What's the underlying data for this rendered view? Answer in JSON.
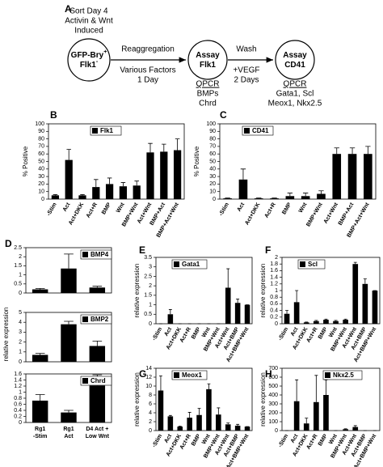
{
  "diagram": {
    "panel": "A",
    "start": [
      "Sort Day 4",
      "Activin & Wnt",
      "Induced"
    ],
    "nodes": [
      {
        "lines": [
          {
            "text": "GFP-Bry",
            "sup": "+"
          },
          {
            "text": "Flk1",
            "sup": "-"
          }
        ]
      },
      {
        "lines": [
          {
            "text": "Assay"
          },
          {
            "text": "Flk1"
          }
        ],
        "readout": [
          "QPCR",
          "BMPs",
          "Chrd"
        ]
      },
      {
        "lines": [
          {
            "text": "Assay"
          },
          {
            "text": "CD41"
          }
        ],
        "readout": [
          "QPCR",
          "Gata1, Scl",
          "Meox1, Nkx2.5"
        ]
      }
    ],
    "steps": [
      {
        "above": "Reaggregation",
        "below": [
          "Various Factors",
          "1 Day"
        ]
      },
      {
        "above": "Wash",
        "below": [
          "+VEGF",
          "2 Days"
        ]
      }
    ]
  },
  "chart_data": [
    {
      "type": "bar",
      "panel": "B",
      "ylabel": "% Positive",
      "categories": [
        "-Stim",
        "Act",
        "Act+DKK",
        "Act+R",
        "BMP",
        "Wnt",
        "BMP+Wnt",
        "Act+Wnt",
        "BMP+Act",
        "BMP+Act+Wnt"
      ],
      "series": [
        {
          "name": "Flk1",
          "color": "#000000",
          "values": [
            5,
            52,
            5,
            16,
            20,
            17,
            18,
            62,
            63,
            65
          ],
          "errors": [
            1,
            14,
            1,
            10,
            8,
            5,
            6,
            12,
            10,
            15
          ]
        }
      ],
      "ylim": [
        0,
        100
      ],
      "yticks": [
        0,
        10,
        20,
        30,
        40,
        50,
        60,
        70,
        80,
        90,
        100
      ]
    },
    {
      "type": "bar",
      "panel": "C",
      "ylabel": "% Positive",
      "categories": [
        "-Stim",
        "Act",
        "Act+DKK",
        "Act+R",
        "BMP",
        "Wnt",
        "BMP+Wnt",
        "Act+Wnt",
        "BMP+Act",
        "BMP+Act+Wnt"
      ],
      "series": [
        {
          "name": "CD41",
          "color": "#000000",
          "values": [
            1,
            26,
            1,
            1,
            4,
            4,
            7,
            60,
            60,
            60
          ],
          "errors": [
            0.5,
            14,
            0.5,
            0.5,
            4,
            4,
            4,
            8,
            8,
            10
          ]
        }
      ],
      "ylim": [
        0,
        100
      ],
      "yticks": [
        0,
        10,
        20,
        30,
        40,
        50,
        60,
        70,
        80,
        90,
        100
      ]
    },
    {
      "type": "bar",
      "panel": "D",
      "ylabel": "relative expression",
      "series": [
        {
          "name": "BMP4",
          "color": "#000000",
          "values": [
            0.2,
            1.35,
            0.3
          ],
          "errors": [
            0.05,
            0.8,
            0.07
          ]
        }
      ],
      "ylim": [
        0,
        2.5
      ],
      "yticks": [
        0,
        0.5,
        1,
        1.5,
        2,
        2.5
      ]
    },
    {
      "type": "bar",
      "series": [
        {
          "name": "BMP2",
          "color": "#000000",
          "values": [
            0.7,
            3.8,
            1.6
          ],
          "errors": [
            0.15,
            0.3,
            0.5
          ]
        }
      ],
      "ylim": [
        0,
        5
      ],
      "yticks": [
        0,
        1,
        2,
        3,
        4,
        5
      ]
    },
    {
      "type": "bar",
      "categories": [
        [
          "Rg1",
          "-Stim"
        ],
        [
          "Rg1",
          "Act"
        ],
        [
          "D4 Act +",
          "Low Wnt"
        ]
      ],
      "series": [
        {
          "name": "Chrd",
          "color": "#000000",
          "values": [
            0.72,
            0.33,
            1.22
          ],
          "errors": [
            0.2,
            0.07,
            0.35
          ]
        }
      ],
      "ylim": [
        0,
        1.6
      ],
      "yticks": [
        0,
        0.2,
        0.4,
        0.6,
        0.8,
        1,
        1.2,
        1.4,
        1.6
      ]
    },
    {
      "type": "bar",
      "panel": "E",
      "ylabel": "relative expression",
      "categories": [
        "-Stim",
        "Act",
        "Act+DKK",
        "Act+R",
        "BMP",
        "Wnt",
        "BMP+Wnt",
        "Act+Wnt",
        "Act+BMP",
        "Act+BMP+Wnt"
      ],
      "series": [
        {
          "name": "Gata1",
          "color": "#000000",
          "values": [
            0,
            0.5,
            0,
            0,
            0,
            0,
            0,
            1.9,
            1.1,
            1
          ],
          "errors": [
            0,
            0.25,
            0,
            0,
            0,
            0,
            0,
            1,
            0.2,
            0
          ]
        }
      ],
      "ylim": [
        0,
        3.5
      ],
      "yticks": [
        0,
        0.5,
        1,
        1.5,
        2,
        2.5,
        3,
        3.5
      ]
    },
    {
      "type": "bar",
      "panel": "F",
      "ylabel": "relative expression",
      "categories": [
        "-Stim",
        "Act",
        "Act+DKK",
        "Act+R",
        "BMP",
        "Wnt",
        "BMP+Wnt",
        "Act+Wnt",
        "Act+BMP",
        "Act+BMP+Wnt"
      ],
      "series": [
        {
          "name": "Scl",
          "color": "#000000",
          "values": [
            0.3,
            0.65,
            0.04,
            0.08,
            0.12,
            0.08,
            0.12,
            1.8,
            1.2,
            1
          ],
          "errors": [
            0.1,
            0.35,
            0.01,
            0.02,
            0.02,
            0.02,
            0.02,
            0.05,
            0.15,
            0
          ]
        }
      ],
      "ylim": [
        0,
        2
      ],
      "yticks": [
        0,
        0.2,
        0.4,
        0.6,
        0.8,
        1,
        1.2,
        1.4,
        1.6,
        1.8,
        2
      ]
    },
    {
      "type": "bar",
      "panel": "G",
      "ylabel": "relative expression",
      "categories": [
        "-Stim",
        "Act",
        "Act+DKK",
        "Act+R",
        "BMP",
        "Wnt",
        "BMP+Wnt",
        "Act+Wnt",
        "Act+BMP",
        "Act+BMP+Wnt"
      ],
      "series": [
        {
          "name": "Meox1",
          "color": "#000000",
          "values": [
            9,
            3.2,
            0.9,
            2.9,
            3.5,
            9.3,
            3.6,
            1.4,
            1.1,
            0.9
          ],
          "errors": [
            3.3,
            0.2,
            0.1,
            1.2,
            1.5,
            1.2,
            1.5,
            0.3,
            0.3,
            0
          ]
        }
      ],
      "ylim": [
        0,
        14
      ],
      "yticks": [
        0,
        2,
        4,
        6,
        8,
        10,
        12,
        14
      ]
    },
    {
      "type": "bar",
      "panel": "H",
      "ylabel": "relative expression",
      "categories": [
        "-Stim",
        "Act",
        "Act+DKK",
        "Act+R",
        "BMP",
        "Wnt",
        "BMP+Wnt",
        "Act+Wnt",
        "Act+BMP",
        "Act+BMP+Wnt"
      ],
      "series": [
        {
          "name": "Nkx2.5",
          "color": "#000000",
          "values": [
            0,
            330,
            80,
            320,
            400,
            0,
            15,
            40,
            0,
            0
          ],
          "errors": [
            0,
            240,
            60,
            300,
            170,
            0,
            5,
            15,
            0,
            0
          ]
        }
      ],
      "ylim": [
        0,
        700
      ],
      "yticks": [
        0,
        100,
        200,
        300,
        400,
        500,
        600,
        700
      ]
    }
  ]
}
